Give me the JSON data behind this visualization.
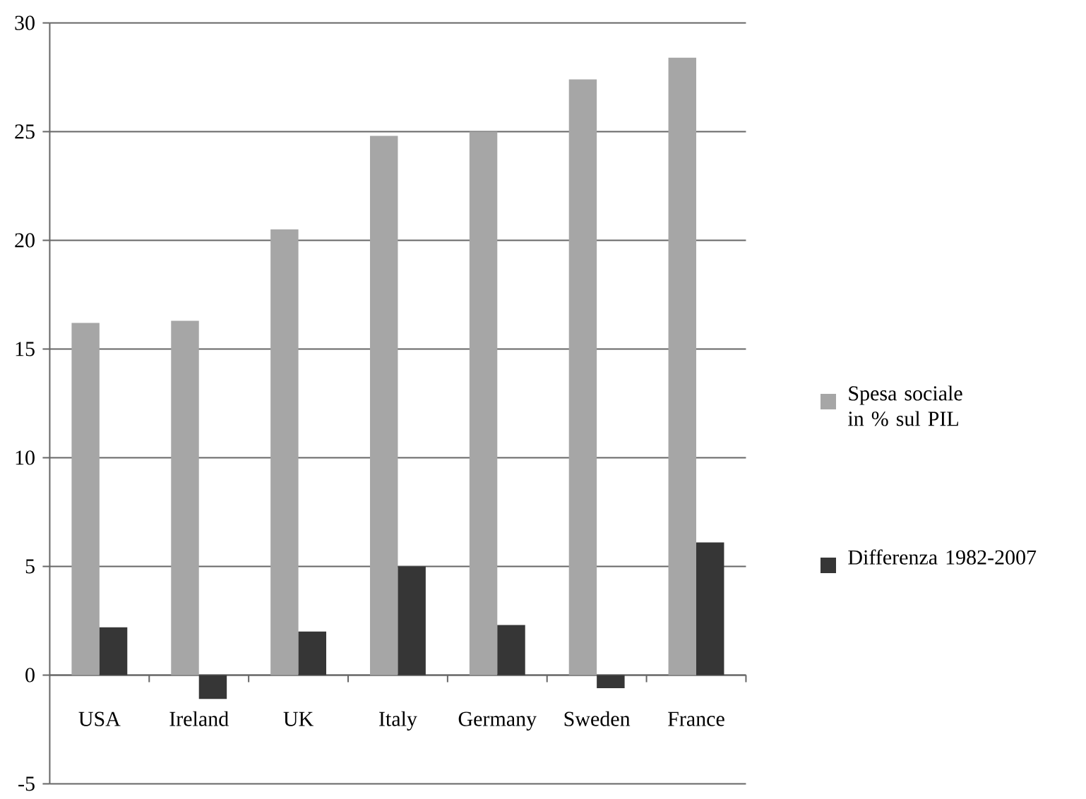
{
  "chart_data": {
    "type": "bar",
    "categories": [
      "USA",
      "Ireland",
      "UK",
      "Italy",
      "Germany",
      "Sweden",
      "France"
    ],
    "series": [
      {
        "name": "Spesa sociale in % sul PIL",
        "color": "#a6a6a6",
        "values": [
          16.2,
          16.3,
          20.5,
          24.8,
          25.0,
          27.4,
          28.4
        ]
      },
      {
        "name": "Differenza 1982-2007",
        "color": "#363636",
        "values": [
          2.2,
          -1.1,
          2.0,
          5.0,
          2.3,
          -0.6,
          6.1
        ]
      }
    ],
    "ylim": [
      -5,
      30
    ],
    "yticks": [
      -5,
      0,
      5,
      10,
      15,
      20,
      25,
      30
    ],
    "grid": "y",
    "legend": "right"
  }
}
